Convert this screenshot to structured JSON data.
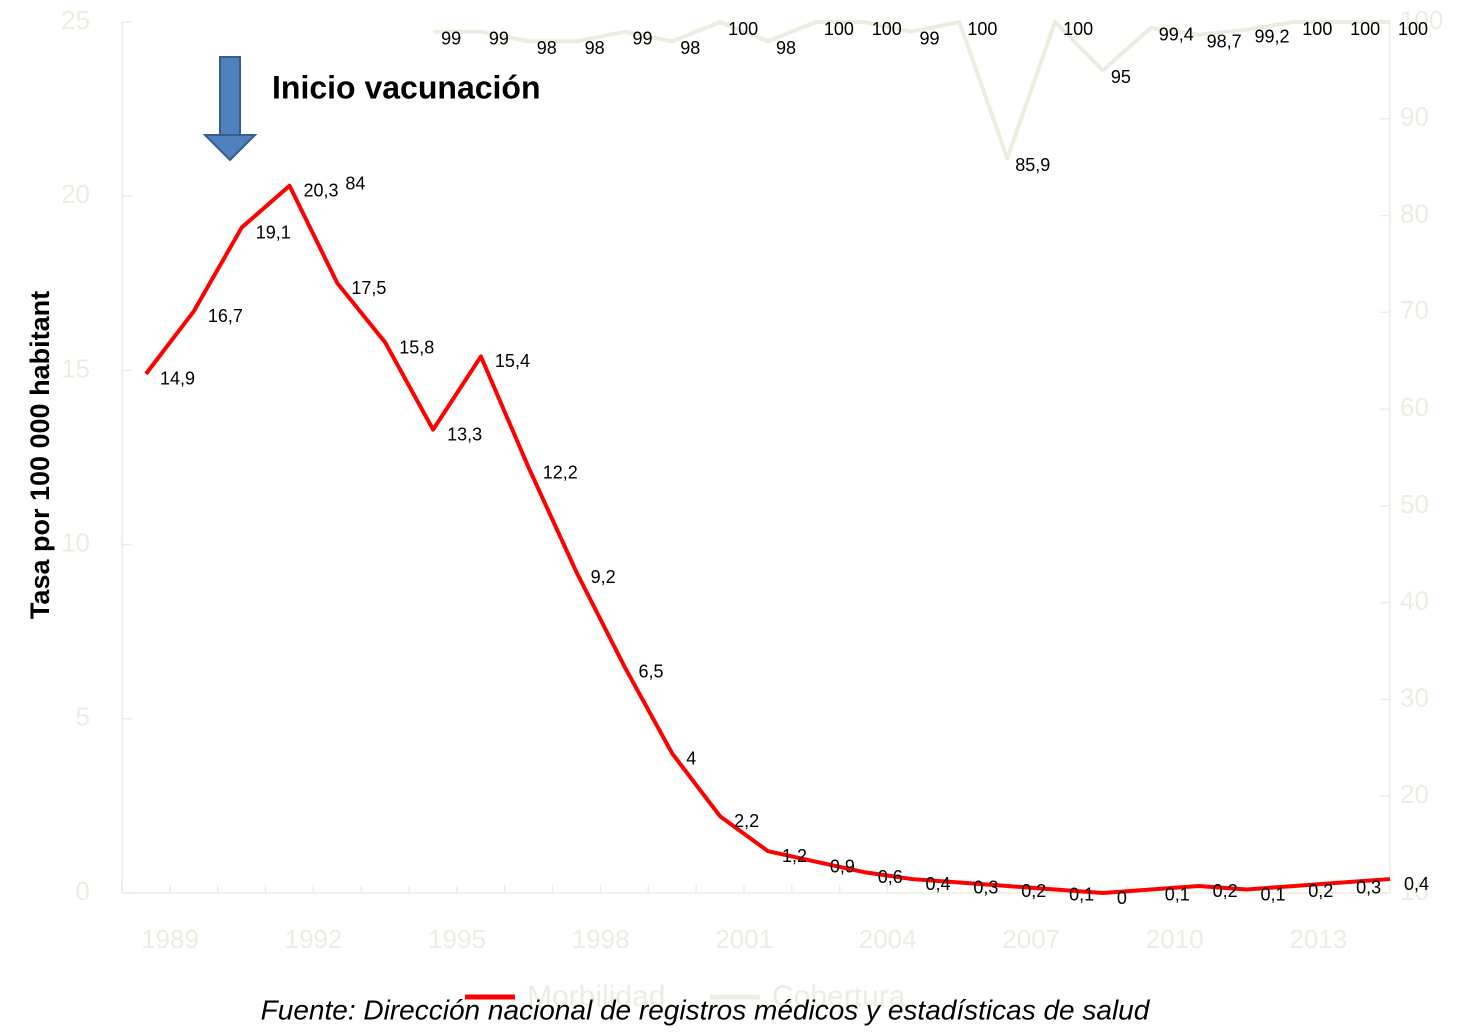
{
  "chart_data": {
    "type": "line",
    "y_axis_label": "Tasa por 100 000 habitant",
    "annotation": "Inicio vacunación",
    "source": "Fuente: Dirección nacional de registros médicos y estadísticas de salud",
    "categories": [
      "1989",
      null,
      null,
      "1992",
      null,
      null,
      "1995",
      null,
      null,
      "1998",
      null,
      null,
      "2001",
      null,
      null,
      "2004",
      null,
      null,
      "2007",
      null,
      null,
      "2010",
      null,
      null,
      "2013",
      null,
      null
    ],
    "series": [
      {
        "name": "Morbilidad",
        "color": "#ff0000",
        "values": [
          14.9,
          16.7,
          19.1,
          20.3,
          17.5,
          15.8,
          13.3,
          15.4,
          12.2,
          9.2,
          6.5,
          4,
          2.2,
          1.2,
          0.9,
          0.6,
          0.4,
          0.3,
          0.2,
          0.1,
          0,
          0.1,
          0.2,
          0.1,
          0.2,
          0.3,
          0.4
        ],
        "value_labels": [
          "14,9",
          "16,7",
          "19,1",
          "20,3",
          "17,5",
          "15,8",
          "13,3",
          "15,4",
          "12,2",
          "9,2",
          "6,5",
          "4",
          "2,2",
          "1,2",
          "0,9",
          "0,6",
          "0,4",
          "0,3",
          "0,2",
          "0,1",
          "0",
          "0,1",
          "0,2",
          "0,1",
          "0,2",
          "0,3",
          "0,4"
        ]
      },
      {
        "name": "Cobertura",
        "color": "#eeece1",
        "axis": "y2",
        "values": [
          null,
          null,
          null,
          null,
          84,
          null,
          99,
          99,
          98,
          98,
          99,
          98,
          100,
          98,
          100,
          100,
          99,
          100,
          85.9,
          100,
          95,
          99.4,
          98.7,
          99.2,
          100,
          100,
          100
        ],
        "value_labels": [
          null,
          null,
          null,
          null,
          "84",
          null,
          "99",
          "99",
          "98",
          "98",
          "99",
          "98",
          "100",
          "98",
          "100",
          "100",
          "99",
          "100",
          "85,9",
          "100",
          "95",
          "99,4",
          "98,7",
          "99,2",
          "100",
          "100",
          "100"
        ]
      }
    ],
    "ylim": [
      0,
      25
    ],
    "yticks": [
      0,
      5,
      10,
      15,
      20,
      25
    ],
    "y2lim": [
      10,
      100
    ],
    "y2ticks": [
      10,
      20,
      30,
      40,
      50,
      60,
      70,
      80,
      90,
      100
    ]
  }
}
